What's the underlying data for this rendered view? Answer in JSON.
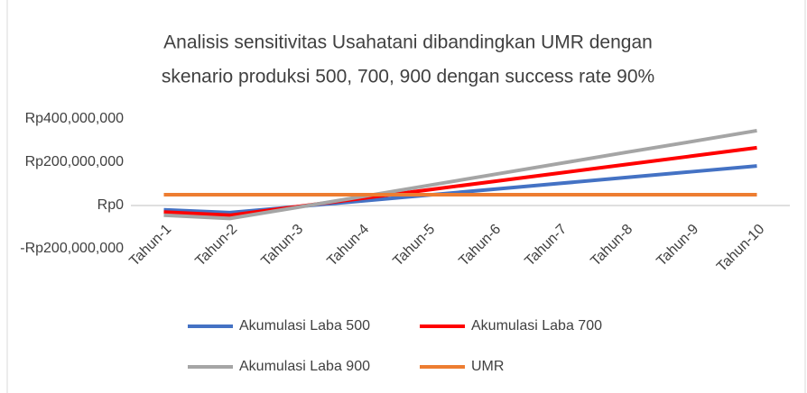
{
  "chart_data": {
    "type": "line",
    "title": [
      "Analisis sensitivitas Usahatani dibandingkan UMR dengan",
      "skenario produksi 500, 700, 900 dengan success rate 90%"
    ],
    "categories": [
      "Tahun-1",
      "Tahun-2",
      "Tahun-3",
      "Tahun-4",
      "Tahun-5",
      "Tahun-6",
      "Tahun-7",
      "Tahun-8",
      "Tahun-9",
      "Tahun-10"
    ],
    "series": [
      {
        "name": "Akumulasi Laba 500",
        "color": "#4472c4",
        "values": [
          -20000000,
          -33000000,
          -6000000,
          21000000,
          48000000,
          75000000,
          102000000,
          129000000,
          156000000,
          183000000
        ]
      },
      {
        "name": "Akumulasi Laba 700",
        "color": "#ff0000",
        "values": [
          -30000000,
          -45000000,
          -6000000,
          33000000,
          72000000,
          111000000,
          150000000,
          189000000,
          228000000,
          267000000
        ]
      },
      {
        "name": "Akumulasi Laba 900",
        "color": "#a5a5a5",
        "values": [
          -45000000,
          -60000000,
          -10000000,
          41000000,
          92000000,
          143000000,
          194000000,
          245000000,
          295000000,
          346000000
        ]
      },
      {
        "name": "UMR",
        "color": "#ed7d31",
        "values": [
          50000000,
          50000000,
          50000000,
          50000000,
          50000000,
          50000000,
          50000000,
          50000000,
          50000000,
          50000000
        ]
      }
    ],
    "ylim": [
      -200000000,
      400000000
    ],
    "yticks": [
      {
        "value": -200000000,
        "label": "-Rp200,000,000"
      },
      {
        "value": 0,
        "label": "Rp0"
      },
      {
        "value": 200000000,
        "label": "Rp200,000,000"
      },
      {
        "value": 400000000,
        "label": "Rp400,000,000"
      }
    ],
    "grid": false
  }
}
